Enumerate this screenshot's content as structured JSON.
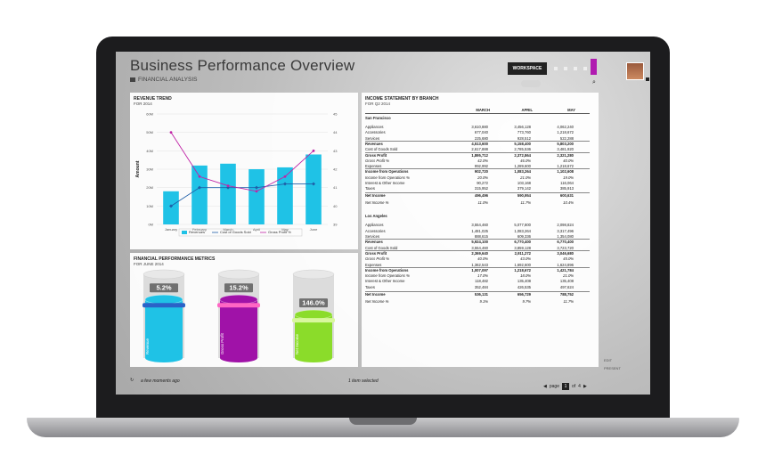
{
  "app": {
    "title": "Business Performance Overview",
    "subtitle": "FINANCIAL ANALYSIS",
    "workspace_label": "WORKSPACE"
  },
  "revenue_panel": {
    "title": "REVENUE TREND",
    "subtitle": "FOR 2014",
    "axis_label_left": "Amount"
  },
  "chart_data": {
    "type": "bar",
    "categories": [
      "January",
      "February",
      "March",
      "April",
      "May",
      "June"
    ],
    "y_left_ticks": [
      "0M",
      "10M",
      "20M",
      "30M",
      "40M",
      "50M",
      "60M"
    ],
    "y_right_ticks": [
      "39",
      "40",
      "41",
      "42",
      "43",
      "44",
      "45"
    ],
    "series": [
      {
        "name": "Revenues",
        "type": "bar",
        "color": "#1fc2e6",
        "values": [
          18,
          32,
          33,
          30,
          31,
          38
        ]
      },
      {
        "name": "Cost of Goods Sold",
        "type": "line",
        "color": "#1f5fa8",
        "values": [
          10,
          20,
          20,
          20,
          22,
          22
        ]
      },
      {
        "name": "Gross Profit %",
        "type": "line",
        "color": "#c024a6",
        "values": [
          44,
          41.6,
          41.1,
          40.8,
          41.6,
          43
        ]
      }
    ],
    "ylim": [
      0,
      60
    ],
    "y2lim": [
      39,
      45
    ]
  },
  "metrics_panel": {
    "title": "FINANCIAL PERFORMANCE METRICS",
    "subtitle": "FOR JUNE 2014",
    "cylinders": [
      {
        "label": "Revenue",
        "value": "5.2%",
        "fill": 0.7,
        "color": "#1fc2e6",
        "ring": "#2a62c8"
      },
      {
        "label": "Gross Profit",
        "value": "15.2%",
        "fill": 0.7,
        "color": "#a012a8",
        "ring": "#ff66c4"
      },
      {
        "label": "Net Income",
        "value": "146.0%",
        "fill": 0.52,
        "color": "#8bdc2a",
        "ring": "#d8f79d"
      }
    ]
  },
  "income_panel": {
    "title": "INCOME STATEMENT BY BRANCH",
    "subtitle": "FOR Q2 2014",
    "columns": [
      "MARCH",
      "APRIL",
      "MAY"
    ],
    "sections": [
      {
        "branch": "San Francisco",
        "rows": [
          {
            "label": "Appliances",
            "vals": [
              "3,610,880",
              "3,456,128",
              "4,062,240"
            ],
            "style": ""
          },
          {
            "label": "Accessories",
            "vals": [
              "677,040",
              "773,760",
              "1,218,672"
            ],
            "style": ""
          },
          {
            "label": "Services",
            "vals": [
              "225,680",
              "928,512",
              "522,288"
            ],
            "style": ""
          },
          {
            "label": "Revenues",
            "vals": [
              "4,513,600",
              "5,158,400",
              "5,803,200"
            ],
            "style": "bold"
          },
          {
            "label": "Cost of Goods Sold",
            "vals": [
              "2,617,888",
              "2,785,536",
              "3,481,920"
            ],
            "style": ""
          },
          {
            "label": "Gross Profit",
            "vals": [
              "1,895,712",
              "2,372,864",
              "2,321,280"
            ],
            "style": "bold"
          },
          {
            "label": "Gross Profit %",
            "vals": [
              "42.0%",
              "46.0%",
              "40.0%"
            ],
            "style": "italic"
          },
          {
            "label": "Expenses",
            "vals": [
              "992,992",
              "1,289,600",
              "1,218,672"
            ],
            "style": ""
          },
          {
            "label": "Income from Operations",
            "vals": [
              "902,720",
              "1,083,264",
              "1,102,608"
            ],
            "style": "bold"
          },
          {
            "label": "Income from Operations %",
            "vals": [
              "20.0%",
              "21.0%",
              "19.0%"
            ],
            "style": "italic"
          },
          {
            "label": "Interest & Other Income",
            "vals": [
              "90,272",
              "103,168",
              "116,064"
            ],
            "style": ""
          },
          {
            "label": "Taxes",
            "vals": [
              "315,952",
              "379,142",
              "385,913"
            ],
            "style": ""
          },
          {
            "label": "Net Income",
            "vals": [
              "496,496",
              "590,954",
              "600,631"
            ],
            "style": "bold"
          },
          {
            "label": "Net Income %",
            "vals": [
              "11.0%",
              "11.7%",
              "10.4%"
            ],
            "style": "italic"
          }
        ]
      },
      {
        "branch": "Los Angeles",
        "rows": [
          {
            "label": "Appliances",
            "vals": [
              "3,554,460",
              "5,077,800",
              "2,098,824"
            ],
            "style": ""
          },
          {
            "label": "Accessories",
            "vals": [
              "1,481,025",
              "1,083,264",
              "3,317,496"
            ],
            "style": ""
          },
          {
            "label": "Services",
            "vals": [
              "888,615",
              "609,336",
              "1,354,080"
            ],
            "style": ""
          },
          {
            "label": "Revenues",
            "vals": [
              "5,924,100",
              "6,770,400",
              "6,770,400"
            ],
            "style": "bold"
          },
          {
            "label": "Cost of Goods Sold",
            "vals": [
              "3,554,460",
              "3,859,128",
              "3,723,720"
            ],
            "style": ""
          },
          {
            "label": "Gross Profit",
            "vals": [
              "2,369,640",
              "2,911,272",
              "3,046,680"
            ],
            "style": "bold"
          },
          {
            "label": "Gross Profit %",
            "vals": [
              "40.0%",
              "43.0%",
              "45.0%"
            ],
            "style": "italic"
          },
          {
            "label": "Expenses",
            "vals": [
              "1,362,543",
              "1,692,600",
              "1,624,896"
            ],
            "style": ""
          },
          {
            "label": "Income from Operations",
            "vals": [
              "1,007,097",
              "1,218,672",
              "1,421,784"
            ],
            "style": "bold"
          },
          {
            "label": "Income from Operations %",
            "vals": [
              "17.0%",
              "18.0%",
              "21.0%"
            ],
            "style": "italic"
          },
          {
            "label": "Interest & Other Income",
            "vals": [
              "118,482",
              "135,408",
              "135,408"
            ],
            "style": ""
          },
          {
            "label": "Taxes",
            "vals": [
              "352,484",
              "426,535",
              "497,624"
            ],
            "style": ""
          },
          {
            "label": "Net Income",
            "vals": [
              "536,131",
              "656,729",
              "788,752"
            ],
            "style": "bold"
          },
          {
            "label": "Net Income %",
            "vals": [
              "9.1%",
              "9.7%",
              "11.7%"
            ],
            "style": "italic"
          }
        ]
      }
    ]
  },
  "footer": {
    "updated": "a few moments ago",
    "selection": "1 item selected"
  },
  "pager": {
    "prefix": "page",
    "current": "1",
    "of": "of",
    "total": "4"
  },
  "side": {
    "edit": "EDIT",
    "present": "PRESENT"
  }
}
